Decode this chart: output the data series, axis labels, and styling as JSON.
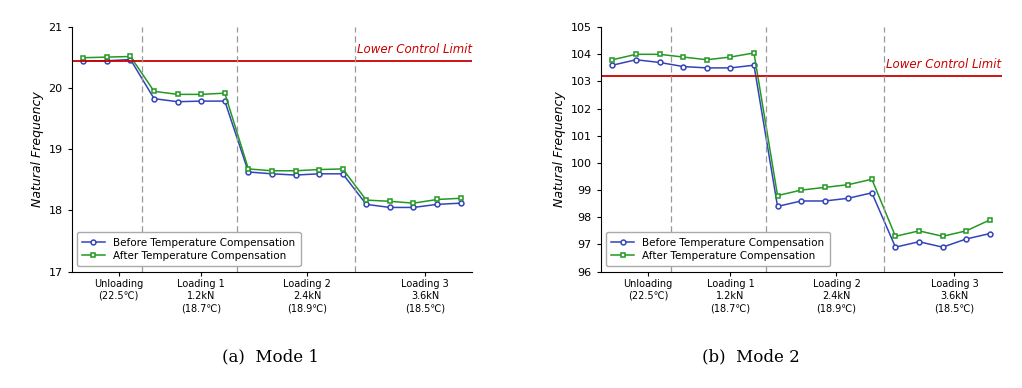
{
  "mode1": {
    "title": "(a)  Mode 1",
    "ylabel": "Natural Frequency",
    "ylim": [
      17,
      21
    ],
    "yticks": [
      17,
      18,
      19,
      20,
      21
    ],
    "lcl": 20.45,
    "lcl_label": "Lower Control Limit",
    "before": [
      20.45,
      20.45,
      20.47,
      19.83,
      19.78,
      19.79,
      19.79,
      18.63,
      18.6,
      18.58,
      18.6,
      18.6,
      18.1,
      18.05,
      18.05,
      18.1,
      18.12
    ],
    "after": [
      20.5,
      20.51,
      20.52,
      19.95,
      19.9,
      19.9,
      19.92,
      18.68,
      18.65,
      18.65,
      18.67,
      18.68,
      18.17,
      18.15,
      18.12,
      18.18,
      18.2
    ],
    "vlines": [
      3,
      7,
      12
    ],
    "xtick_pos": [
      1.5,
      5.0,
      9.5,
      14.5
    ],
    "xtick_labels": [
      "Unloading\n(22.5℃)",
      "Loading 1\n1.2kN\n(18.7℃)",
      "Loading 2\n2.4kN\n(18.9℃)",
      "Loading 3\n3.6kN\n(18.5℃)"
    ]
  },
  "mode2": {
    "title": "(b)  Mode 2",
    "ylabel": "Natural Frequency",
    "ylim": [
      96,
      105
    ],
    "yticks": [
      96,
      97,
      98,
      99,
      100,
      101,
      102,
      103,
      104,
      105
    ],
    "lcl": 103.2,
    "lcl_label": "Lower Control Limit",
    "before": [
      103.6,
      103.8,
      103.7,
      103.55,
      103.5,
      103.5,
      103.6,
      98.4,
      98.6,
      98.6,
      98.7,
      98.9,
      96.9,
      97.1,
      96.9,
      97.2,
      97.4
    ],
    "after": [
      103.8,
      104.0,
      104.0,
      103.9,
      103.8,
      103.9,
      104.05,
      98.8,
      99.0,
      99.1,
      99.2,
      99.4,
      97.3,
      97.5,
      97.3,
      97.5,
      97.9
    ],
    "vlines": [
      3,
      7,
      12
    ],
    "xtick_pos": [
      1.5,
      5.0,
      9.5,
      14.5
    ],
    "xtick_labels": [
      "Unloading\n(22.5℃)",
      "Loading 1\n1.2kN\n(18.7℃)",
      "Loading 2\n2.4kN\n(18.9℃)",
      "Loading 3\n3.6kN\n(18.5℃)"
    ]
  },
  "before_color": "#3344bb",
  "after_color": "#229922",
  "lcl_color": "#cc0000",
  "vline_color": "#999999",
  "before_label": "Before Temperature Compensation",
  "after_label": "After Temperature Compensation"
}
